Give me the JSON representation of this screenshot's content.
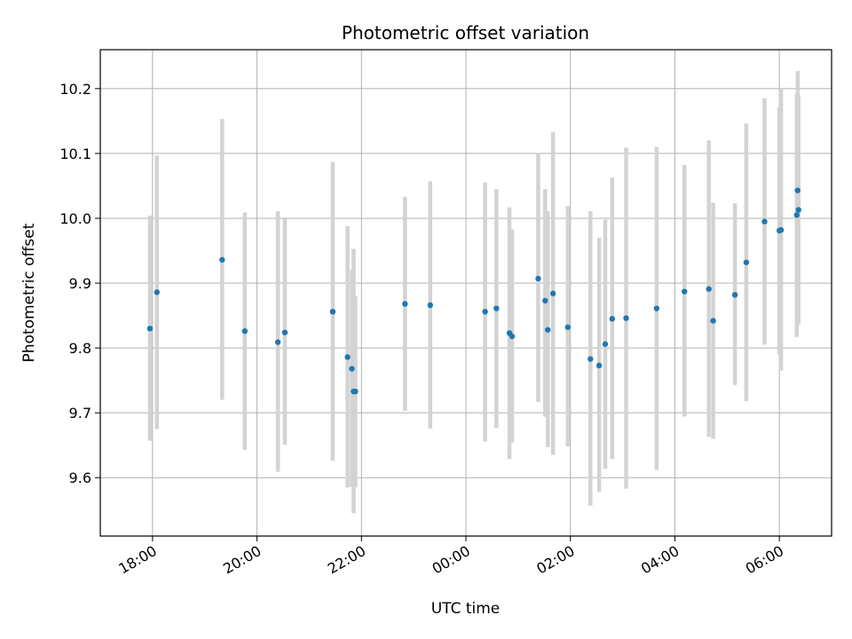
{
  "chart_data": {
    "type": "scatter",
    "title": "Photometric offset variation",
    "xlabel": "UTC time",
    "ylabel": "Photometric offset",
    "x_axis_type": "time",
    "x_start_datetime": "2000-01-01T17:00",
    "xlim": [
      "2000-01-01T17:00",
      "2000-01-02T07:00"
    ],
    "ylim": [
      9.51,
      10.26
    ],
    "x_ticks": [
      {
        "time": "2000-01-01T18:00",
        "label": "18:00"
      },
      {
        "time": "2000-01-01T20:00",
        "label": "20:00"
      },
      {
        "time": "2000-01-01T22:00",
        "label": "22:00"
      },
      {
        "time": "2000-01-02T00:00",
        "label": "00:00"
      },
      {
        "time": "2000-01-02T02:00",
        "label": "02:00"
      },
      {
        "time": "2000-01-02T04:00",
        "label": "04:00"
      },
      {
        "time": "2000-01-02T06:00",
        "label": "06:00"
      }
    ],
    "y_ticks": [
      {
        "value": 9.6,
        "label": "9.6"
      },
      {
        "value": 9.7,
        "label": "9.7"
      },
      {
        "value": 9.8,
        "label": "9.8"
      },
      {
        "value": 9.9,
        "label": "9.9"
      },
      {
        "value": 10.0,
        "label": "10.0"
      },
      {
        "value": 10.1,
        "label": "10.1"
      },
      {
        "value": 10.2,
        "label": "10.2"
      }
    ],
    "grid": true,
    "marker_color": "#1f77b4",
    "errorbar_color": "#d3d3d3",
    "points": [
      {
        "time": "2000-01-01T17:57",
        "y": 9.83,
        "low": 9.657,
        "high": 10.004
      },
      {
        "time": "2000-01-01T18:05",
        "y": 9.886,
        "low": 9.675,
        "high": 10.097
      },
      {
        "time": "2000-01-01T19:20",
        "y": 9.936,
        "low": 9.72,
        "high": 10.153
      },
      {
        "time": "2000-01-01T19:46",
        "y": 9.826,
        "low": 9.643,
        "high": 10.009
      },
      {
        "time": "2000-01-01T20:24",
        "y": 9.809,
        "low": 9.609,
        "high": 10.011
      },
      {
        "time": "2000-01-01T20:32",
        "y": 9.824,
        "low": 9.651,
        "high": 9.999
      },
      {
        "time": "2000-01-01T21:27",
        "y": 9.856,
        "low": 9.626,
        "high": 10.087
      },
      {
        "time": "2000-01-01T21:44",
        "y": 9.786,
        "low": 9.585,
        "high": 9.988
      },
      {
        "time": "2000-01-01T21:49",
        "y": 9.768,
        "low": 9.586,
        "high": 9.921
      },
      {
        "time": "2000-01-01T21:51",
        "y": 9.733,
        "low": 9.545,
        "high": 9.953
      },
      {
        "time": "2000-01-01T21:53",
        "y": 9.733,
        "low": 9.585,
        "high": 9.88
      },
      {
        "time": "2000-01-01T22:50",
        "y": 9.868,
        "low": 9.703,
        "high": 10.033
      },
      {
        "time": "2000-01-01T23:19",
        "y": 9.866,
        "low": 9.676,
        "high": 10.057
      },
      {
        "time": "2000-01-02T00:22",
        "y": 9.856,
        "low": 9.656,
        "high": 10.055
      },
      {
        "time": "2000-01-02T00:35",
        "y": 9.861,
        "low": 9.677,
        "high": 10.045
      },
      {
        "time": "2000-01-02T00:50",
        "y": 9.823,
        "low": 9.629,
        "high": 10.017
      },
      {
        "time": "2000-01-02T00:53",
        "y": 9.818,
        "low": 9.654,
        "high": 9.983
      },
      {
        "time": "2000-01-02T01:23",
        "y": 9.907,
        "low": 9.717,
        "high": 10.101
      },
      {
        "time": "2000-01-02T01:31",
        "y": 9.873,
        "low": 9.694,
        "high": 10.045
      },
      {
        "time": "2000-01-02T01:34",
        "y": 9.828,
        "low": 9.647,
        "high": 10.011
      },
      {
        "time": "2000-01-02T01:40",
        "y": 9.884,
        "low": 9.635,
        "high": 10.133
      },
      {
        "time": "2000-01-02T01:57",
        "y": 9.832,
        "low": 9.648,
        "high": 10.019
      },
      {
        "time": "2000-01-02T02:23",
        "y": 9.783,
        "low": 9.557,
        "high": 10.011
      },
      {
        "time": "2000-01-02T02:33",
        "y": 9.773,
        "low": 9.578,
        "high": 9.97
      },
      {
        "time": "2000-01-02T02:40",
        "y": 9.806,
        "low": 9.614,
        "high": 9.998
      },
      {
        "time": "2000-01-02T02:48",
        "y": 9.845,
        "low": 9.629,
        "high": 10.063
      },
      {
        "time": "2000-01-02T03:04",
        "y": 9.846,
        "low": 9.583,
        "high": 10.109
      },
      {
        "time": "2000-01-02T03:39",
        "y": 9.861,
        "low": 9.612,
        "high": 10.11
      },
      {
        "time": "2000-01-02T04:11",
        "y": 9.887,
        "low": 9.694,
        "high": 10.082
      },
      {
        "time": "2000-01-02T04:39",
        "y": 9.891,
        "low": 9.663,
        "high": 10.12
      },
      {
        "time": "2000-01-02T04:44",
        "y": 9.842,
        "low": 9.66,
        "high": 10.024
      },
      {
        "time": "2000-01-02T05:09",
        "y": 9.882,
        "low": 9.743,
        "high": 10.023
      },
      {
        "time": "2000-01-02T05:22",
        "y": 9.932,
        "low": 9.718,
        "high": 10.146
      },
      {
        "time": "2000-01-02T05:43",
        "y": 9.995,
        "low": 9.805,
        "high": 10.185
      },
      {
        "time": "2000-01-02T06:00",
        "y": 9.981,
        "low": 9.79,
        "high": 10.171
      },
      {
        "time": "2000-01-02T06:02",
        "y": 9.982,
        "low": 9.765,
        "high": 10.2
      },
      {
        "time": "2000-01-02T06:20",
        "y": 10.005,
        "low": 9.817,
        "high": 10.192
      },
      {
        "time": "2000-01-02T06:21",
        "y": 10.043,
        "low": 9.838,
        "high": 10.227
      },
      {
        "time": "2000-01-02T06:22",
        "y": 10.013,
        "low": 9.836,
        "high": 10.19
      }
    ]
  }
}
